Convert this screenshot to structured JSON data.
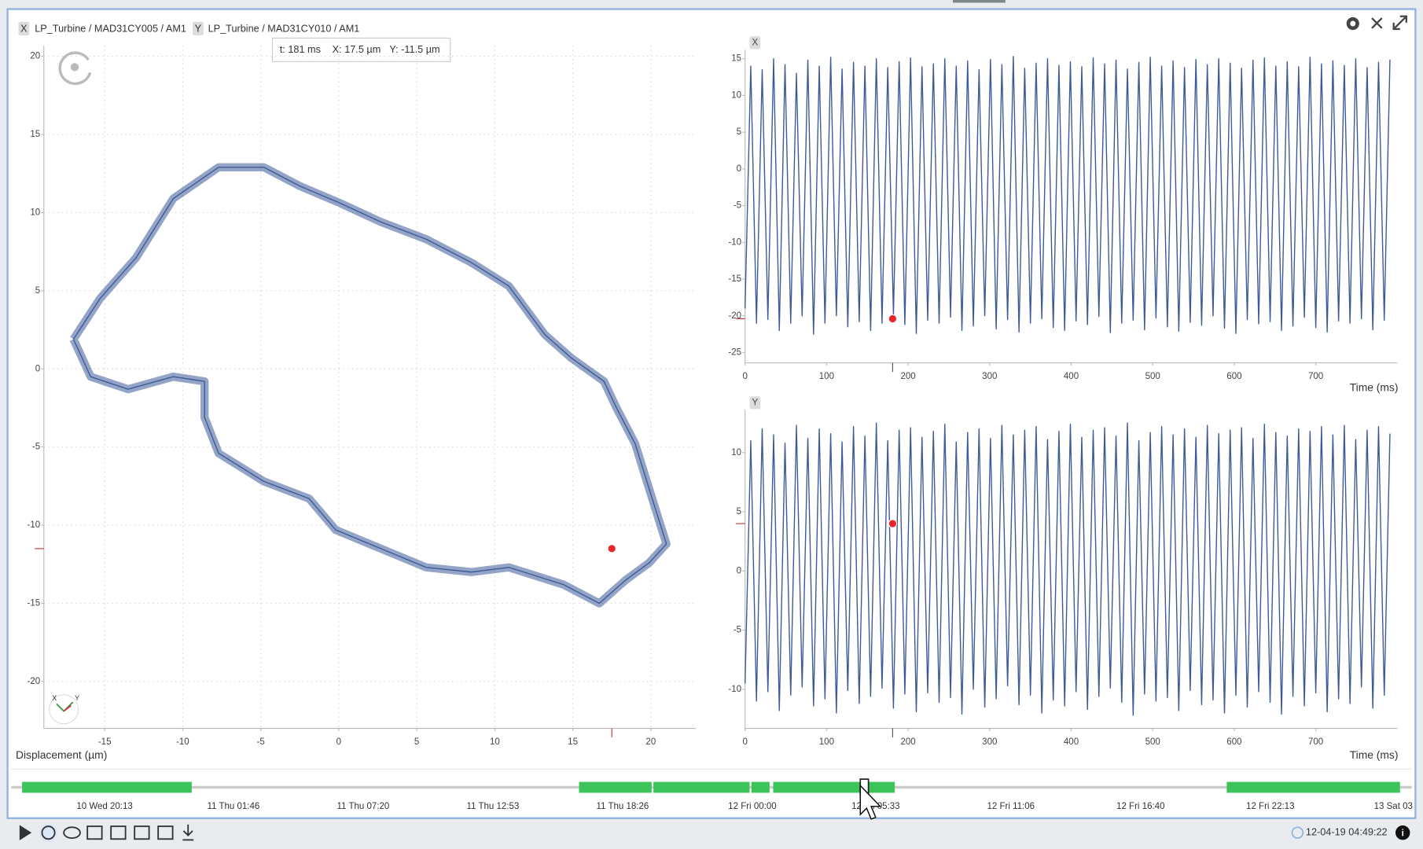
{
  "header": {
    "x_badge": "X",
    "x_channel": "LP_Turbine / MAD31CY005 / AM1",
    "y_badge": "Y",
    "y_channel": "LP_Turbine / MAD31CY010 / AM1"
  },
  "tooltip": {
    "t": "t: 181 ms",
    "x": "X: 17.5 µm",
    "y": "Y: -11.5 µm"
  },
  "chart_data": [
    {
      "type": "line",
      "x_label": "Displacement (µm)",
      "color": "#3d5a98",
      "grid": true,
      "x": [
        -17.0,
        -15.3,
        -13.0,
        -10.6,
        -7.7,
        -4.8,
        -2.5,
        0.1,
        2.7,
        5.6,
        8.5,
        10.9,
        13.2,
        14.9,
        17.0,
        17.8,
        19.0,
        19.9,
        21.0,
        19.9,
        18.4,
        16.7,
        14.4,
        10.9,
        8.5,
        5.6,
        2.7,
        -0.2,
        -1.9,
        -4.8,
        -7.7,
        -8.6,
        -8.6,
        -10.6,
        -13.5,
        -15.9,
        -17.0
      ],
      "values": [
        1.9,
        4.5,
        7.1,
        10.9,
        12.9,
        12.9,
        11.7,
        10.6,
        9.4,
        8.3,
        6.8,
        5.3,
        2.2,
        0.7,
        -0.8,
        -2.5,
        -4.8,
        -7.7,
        -11.2,
        -12.4,
        -13.5,
        -15.0,
        -13.8,
        -12.7,
        -13.0,
        -12.7,
        -11.5,
        -10.3,
        -8.3,
        -7.2,
        -5.4,
        -3.1,
        -0.8,
        -0.5,
        -1.3,
        -0.5,
        1.9
      ],
      "xlim": [
        -18.9,
        22.9
      ],
      "ylim": [
        -23,
        20.7
      ],
      "xticks": [
        -15,
        -10,
        -5,
        0,
        5,
        10,
        15,
        20
      ],
      "yticks": [
        20,
        15,
        10,
        5,
        0,
        -5,
        -10,
        -15,
        -20
      ],
      "cursor": {
        "x": 17.5,
        "y": -11.5
      }
    },
    {
      "type": "line",
      "badge": "X",
      "x_label": "Time (ms)",
      "color": "#3d5a98",
      "grid": false,
      "x": [
        0,
        7,
        14,
        21,
        28,
        35,
        42,
        49,
        56,
        63,
        70,
        77,
        84,
        91,
        98,
        105,
        112,
        119,
        126,
        133,
        140,
        147,
        154,
        161,
        168,
        175,
        182,
        189,
        196,
        203,
        210,
        217,
        224,
        231,
        238,
        245,
        252,
        259,
        266,
        273,
        280,
        287,
        294,
        301,
        308,
        315,
        322,
        329,
        336,
        343,
        350,
        357,
        364,
        371,
        378,
        385,
        392,
        399,
        406,
        413,
        420,
        427,
        434,
        441,
        448,
        455,
        462,
        469,
        476,
        483,
        490,
        497,
        504,
        511,
        518,
        525,
        532,
        539,
        546,
        553,
        560,
        567,
        574,
        581,
        588,
        595,
        602,
        609,
        616,
        623,
        630,
        637,
        644,
        651,
        658,
        665,
        672,
        679,
        686,
        693,
        700,
        707,
        714,
        721,
        728,
        735,
        742,
        749,
        756,
        763,
        770,
        777,
        784,
        791
      ],
      "values": [
        -19,
        14,
        -21,
        13.5,
        -20.5,
        15,
        -22,
        14.2,
        -21,
        13,
        -20,
        14.8,
        -22.5,
        14,
        -21,
        15.2,
        -20,
        13.6,
        -21.5,
        14.5,
        -20.8,
        14,
        -22,
        15,
        -21,
        13.8,
        -19.8,
        14.6,
        -21.2,
        15.1,
        -22.4,
        13.9,
        -20.6,
        14.3,
        -21,
        15,
        -20.2,
        14,
        -22,
        14.7,
        -21.4,
        13.5,
        -20,
        14.9,
        -21.8,
        14.2,
        -20.5,
        15.3,
        -22.2,
        13.7,
        -21,
        14.4,
        -20.4,
        15,
        -21.6,
        14.1,
        -22,
        14.6,
        -20.7,
        13.9,
        -21.2,
        15.1,
        -20.1,
        14.3,
        -22.3,
        14.8,
        -21,
        13.6,
        -20.6,
        14.5,
        -21.9,
        15.2,
        -20.3,
        14,
        -21.5,
        14.7,
        -22.1,
        13.8,
        -20.9,
        14.9,
        -21.3,
        14.2,
        -20,
        15,
        -21.7,
        14.4,
        -22.4,
        13.7,
        -20.5,
        14.8,
        -21.1,
        15.1,
        -20.8,
        14,
        -22,
        14.6,
        -21.4,
        13.9,
        -20.2,
        15.2,
        -21.6,
        14.3,
        -22.2,
        14.7,
        -20.7,
        14.1,
        -21,
        15,
        -20.4,
        13.8,
        -21.9,
        14.5,
        -20.6,
        14.9
      ],
      "xlim": [
        0,
        800
      ],
      "ylim": [
        -26.4,
        16.2
      ],
      "xticks": [
        0,
        100,
        200,
        300,
        400,
        500,
        600,
        700
      ],
      "yticks": [
        15,
        10,
        5,
        0,
        -5,
        -10,
        -15,
        -20,
        -25
      ],
      "cursor": {
        "x": 181,
        "y": -20.4
      }
    },
    {
      "type": "line",
      "badge": "Y",
      "x_label": "Time (ms)",
      "color": "#3d5a98",
      "grid": false,
      "x": [
        0,
        7,
        14,
        21,
        28,
        35,
        42,
        49,
        56,
        63,
        70,
        77,
        84,
        91,
        98,
        105,
        112,
        119,
        126,
        133,
        140,
        147,
        154,
        161,
        168,
        175,
        182,
        189,
        196,
        203,
        210,
        217,
        224,
        231,
        238,
        245,
        252,
        259,
        266,
        273,
        280,
        287,
        294,
        301,
        308,
        315,
        322,
        329,
        336,
        343,
        350,
        357,
        364,
        371,
        378,
        385,
        392,
        399,
        406,
        413,
        420,
        427,
        434,
        441,
        448,
        455,
        462,
        469,
        476,
        483,
        490,
        497,
        504,
        511,
        518,
        525,
        532,
        539,
        546,
        553,
        560,
        567,
        574,
        581,
        588,
        595,
        602,
        609,
        616,
        623,
        630,
        637,
        644,
        651,
        658,
        665,
        672,
        679,
        686,
        693,
        700,
        707,
        714,
        721,
        728,
        735,
        742,
        749,
        756,
        763,
        770,
        777,
        784,
        791
      ],
      "values": [
        -9.5,
        11,
        -11,
        12,
        -10.2,
        11.5,
        -11.8,
        10.8,
        -10.5,
        12.3,
        -9.8,
        11.2,
        -11.4,
        12,
        -10.8,
        11.6,
        -12,
        10.9,
        -10.1,
        12.2,
        -11.2,
        11.4,
        -10.6,
        12.5,
        -9.9,
        11,
        -11.6,
        11.9,
        -10.4,
        12.1,
        -11.9,
        11.3,
        -10.3,
        11.8,
        -11.1,
        12.4,
        -10.7,
        10.9,
        -12.1,
        11.7,
        -10,
        12,
        -11.5,
        11.2,
        -10.8,
        12.3,
        -9.7,
        11.5,
        -11.3,
        11.9,
        -10.5,
        12.2,
        -12,
        11.1,
        -10.9,
        11.8,
        -11.4,
        12.4,
        -10.2,
        11.3,
        -11.7,
        11.9,
        -10.6,
        12.1,
        -9.9,
        11.4,
        -11.1,
        12.5,
        -12.2,
        11,
        -10.4,
        11.7,
        -11,
        12.2,
        -10.7,
        11.5,
        -11.8,
        12,
        -10.1,
        11.3,
        -11.3,
        12.3,
        -10.9,
        11.6,
        -12,
        11.9,
        -10.5,
        12.1,
        -11.5,
        11.2,
        -10.2,
        12.4,
        -11.1,
        11.7,
        -12.1,
        11.4,
        -10.6,
        12,
        -11.4,
        11.8,
        -10.3,
        12.2,
        -11.9,
        11.5,
        -10.8,
        12.3,
        -11.2,
        11.1,
        -9.8,
        11.9,
        -11.6,
        12.2,
        -10.5,
        11.6
      ],
      "xlim": [
        0,
        800
      ],
      "ylim": [
        -13.3,
        13.6
      ],
      "xticks": [
        0,
        100,
        200,
        300,
        400,
        500,
        600,
        700
      ],
      "yticks": [
        10,
        5,
        0,
        -5,
        -10
      ],
      "cursor": {
        "x": 181,
        "y": 4
      }
    }
  ],
  "timeline": {
    "labels": [
      "10 Wed 20:13",
      "11 Thu 01:46",
      "11 Thu 07:20",
      "11 Thu 12:53",
      "11 Thu 18:26",
      "12 Fri 00:00",
      "12 Fri 05:33",
      "12 Fri 11:06",
      "12 Fri 16:40",
      "12 Fri 22:13",
      "13 Sat 03"
    ]
  },
  "status": {
    "timestamp": "12-04-19 04:49:22"
  }
}
